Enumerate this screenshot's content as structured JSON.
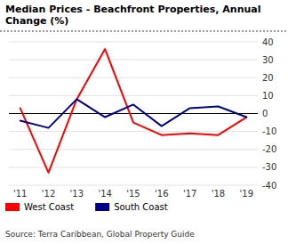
{
  "chart_data": {
    "type": "line",
    "title": "Median Prices - Beachfront Properties, Annual Change (%)",
    "categories": [
      "'11",
      "'12",
      "'13",
      "'14",
      "'15",
      "'16",
      "'17",
      "'18",
      "'19"
    ],
    "series": [
      {
        "name": "West Coast",
        "color": "#ff0000",
        "values": [
          3,
          -33,
          8,
          36,
          -5,
          -12,
          -11,
          -12,
          -2
        ]
      },
      {
        "name": "South Coast",
        "color": "#00008b",
        "values": [
          -4,
          -8,
          8,
          -2,
          5,
          -7,
          3,
          4,
          -2
        ]
      }
    ],
    "ylim": [
      -40,
      40
    ],
    "yticks": [
      -40,
      -30,
      -20,
      -10,
      0,
      10,
      20,
      30,
      40
    ],
    "grid": true,
    "legend": "bottom",
    "annotations": [
      "Source: Terra Caribbean, Global Property Guide"
    ]
  }
}
